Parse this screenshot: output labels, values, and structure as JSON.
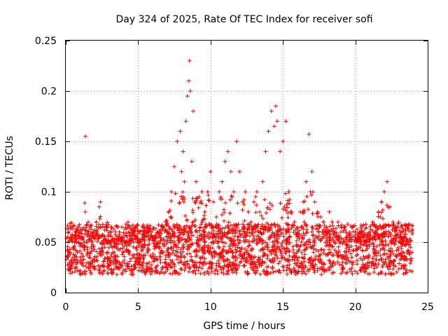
{
  "chart_data": {
    "type": "scatter",
    "title": "Day 324 of 2025, Rate Of TEC Index for receiver sofi",
    "xlabel": "GPS time / hours",
    "ylabel": "ROTI / TECUs",
    "xlim": [
      0,
      25
    ],
    "ylim": [
      0,
      0.25
    ],
    "xticks": [
      0,
      5,
      10,
      15,
      20,
      25
    ],
    "xtick_labels": [
      "0",
      "5",
      "10",
      "15",
      "20",
      "25"
    ],
    "yticks": [
      0,
      0.05,
      0.1,
      0.15,
      0.2,
      0.25
    ],
    "ytick_labels": [
      "0",
      "0.05",
      "0.1",
      "0.15",
      "0.2",
      "0.25"
    ],
    "grid": true,
    "marker": "+",
    "color": "#ff0000",
    "series": [
      {
        "name": "ROTI",
        "x": [
          0.1,
          0.2,
          0.3,
          0.4,
          0.5,
          0.6,
          0.8,
          1.0,
          1.2,
          1.35,
          1.5,
          1.7,
          1.9,
          2.1,
          2.3,
          2.4,
          2.5,
          2.7,
          2.9,
          3.1,
          3.3,
          3.5,
          3.7,
          3.9,
          4.1,
          4.3,
          4.5,
          4.7,
          4.9,
          5.1,
          5.3,
          5.5,
          5.7,
          5.9,
          6.1,
          6.3,
          6.5,
          6.7,
          6.9,
          7.1,
          7.3,
          7.5,
          7.7,
          7.9,
          8.0,
          8.1,
          8.2,
          8.3,
          8.4,
          8.5,
          8.55,
          8.6,
          8.7,
          8.8,
          8.9,
          9.0,
          9.2,
          9.4,
          9.6,
          9.8,
          10.0,
          10.2,
          10.4,
          10.6,
          10.8,
          11.0,
          11.2,
          11.4,
          11.6,
          11.8,
          12.0,
          12.2,
          12.4,
          12.6,
          12.8,
          13.0,
          13.2,
          13.4,
          13.6,
          13.8,
          14.0,
          14.2,
          14.4,
          14.5,
          14.6,
          14.8,
          15.0,
          15.2,
          15.4,
          15.6,
          15.8,
          16.0,
          16.2,
          16.4,
          16.6,
          16.8,
          16.9,
          17.0,
          17.2,
          17.4,
          17.6,
          17.8,
          18.0,
          18.2,
          18.4,
          18.6,
          18.8,
          19.0,
          19.2,
          19.4,
          19.6,
          19.8,
          20.0,
          20.2,
          20.4,
          20.6,
          20.8,
          21.0,
          21.2,
          21.4,
          21.6,
          21.8,
          22.0,
          22.2,
          22.4,
          22.6,
          22.8,
          23.0,
          23.2,
          23.4,
          23.6,
          23.8,
          23.9
        ],
        "y": [
          0.035,
          0.06,
          0.04,
          0.03,
          0.045,
          0.05,
          0.04,
          0.035,
          0.045,
          0.155,
          0.05,
          0.04,
          0.06,
          0.07,
          0.085,
          0.09,
          0.05,
          0.045,
          0.04,
          0.06,
          0.05,
          0.045,
          0.06,
          0.055,
          0.05,
          0.07,
          0.06,
          0.05,
          0.045,
          0.05,
          0.055,
          0.06,
          0.065,
          0.06,
          0.055,
          0.06,
          0.05,
          0.065,
          0.07,
          0.08,
          0.1,
          0.125,
          0.15,
          0.16,
          0.12,
          0.14,
          0.11,
          0.17,
          0.195,
          0.21,
          0.23,
          0.2,
          0.13,
          0.18,
          0.09,
          0.11,
          0.095,
          0.1,
          0.08,
          0.1,
          0.12,
          0.09,
          0.075,
          0.1,
          0.11,
          0.13,
          0.14,
          0.12,
          0.1,
          0.15,
          0.12,
          0.09,
          0.1,
          0.08,
          0.07,
          0.09,
          0.1,
          0.08,
          0.11,
          0.14,
          0.16,
          0.18,
          0.165,
          0.185,
          0.17,
          0.14,
          0.15,
          0.17,
          0.1,
          0.08,
          0.07,
          0.06,
          0.08,
          0.09,
          0.11,
          0.157,
          0.1,
          0.12,
          0.09,
          0.08,
          0.075,
          0.07,
          0.065,
          0.08,
          0.07,
          0.06,
          0.07,
          0.06,
          0.05,
          0.055,
          0.06,
          0.065,
          0.06,
          0.055,
          0.06,
          0.055,
          0.05,
          0.06,
          0.07,
          0.065,
          0.08,
          0.09,
          0.1,
          0.11,
          0.085,
          0.07,
          0.065,
          0.07,
          0.06,
          0.055,
          0.05,
          0.045,
          0.04
        ]
      }
    ]
  }
}
